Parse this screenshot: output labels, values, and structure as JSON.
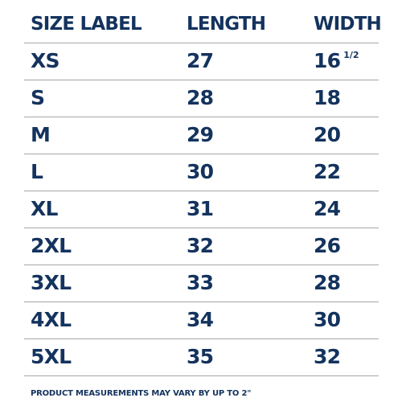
{
  "header": {
    "size_label": "SIZE LABEL",
    "length_label": "LENGTH",
    "width_label": "WIDTH"
  },
  "rows": [
    {
      "size": "XS",
      "length": "27",
      "width": "16",
      "width_fraction": "1/2"
    },
    {
      "size": "S",
      "length": "28",
      "width": "18"
    },
    {
      "size": "M",
      "length": "29",
      "width": "20"
    },
    {
      "size": "L",
      "length": "30",
      "width": "22"
    },
    {
      "size": "XL",
      "length": "31",
      "width": "24"
    },
    {
      "size": "2XL",
      "length": "32",
      "width": "26"
    },
    {
      "size": "3XL",
      "length": "33",
      "width": "28"
    },
    {
      "size": "4XL",
      "length": "34",
      "width": "30"
    },
    {
      "size": "5XL",
      "length": "35",
      "width": "32"
    }
  ],
  "footnote": "PRODUCT MEASUREMENTS MAY VARY BY UP TO 2\"",
  "colors": {
    "text": "#14335e",
    "rule": "#a6a6a6",
    "background": "#ffffff"
  }
}
